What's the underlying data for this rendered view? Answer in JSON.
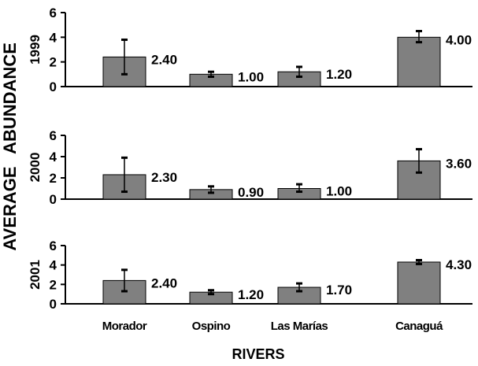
{
  "chart_data": [
    {
      "type": "bar",
      "ylabel": "1999",
      "categories": [
        "Morador",
        "Ospino",
        "Las Marías",
        "Canaguá"
      ],
      "values": [
        2.4,
        1.0,
        1.2,
        4.0
      ],
      "value_labels": [
        "2.40",
        "1.00",
        "1.20",
        "4.00"
      ],
      "error_low": [
        1.0,
        0.8,
        0.8,
        3.6
      ],
      "error_high": [
        3.8,
        1.2,
        1.6,
        4.5
      ],
      "ylim": [
        0,
        6
      ],
      "yticks": [
        "0",
        "2",
        "4",
        "6"
      ]
    },
    {
      "type": "bar",
      "ylabel": "2000",
      "categories": [
        "Morador",
        "Ospino",
        "Las Marías",
        "Canaguá"
      ],
      "values": [
        2.3,
        0.9,
        1.0,
        3.6
      ],
      "value_labels": [
        "2.30",
        "0.90",
        "1.00",
        "3.60"
      ],
      "error_low": [
        0.7,
        0.6,
        0.7,
        2.5
      ],
      "error_high": [
        3.9,
        1.2,
        1.4,
        4.7
      ],
      "ylim": [
        0,
        6
      ],
      "yticks": [
        "0",
        "2",
        "4",
        "6"
      ]
    },
    {
      "type": "bar",
      "ylabel": "2001",
      "categories": [
        "Morador",
        "Ospino",
        "Las Marías",
        "Canaguá"
      ],
      "values": [
        2.4,
        1.2,
        1.7,
        4.3
      ],
      "value_labels": [
        "2.40",
        "1.20",
        "1.70",
        "4.30"
      ],
      "error_low": [
        1.3,
        1.0,
        1.3,
        4.1
      ],
      "error_high": [
        3.5,
        1.4,
        2.1,
        4.5
      ],
      "ylim": [
        0,
        6
      ],
      "yticks": [
        "0",
        "2",
        "4",
        "6"
      ]
    }
  ],
  "labels": {
    "y_word_top": "ABUNDANCE",
    "y_word_bottom": "AVERAGE",
    "x_title": "RIVERS"
  },
  "colors": {
    "bar_fill": "#808080",
    "bar_stroke": "#000000",
    "axis": "#000000"
  }
}
